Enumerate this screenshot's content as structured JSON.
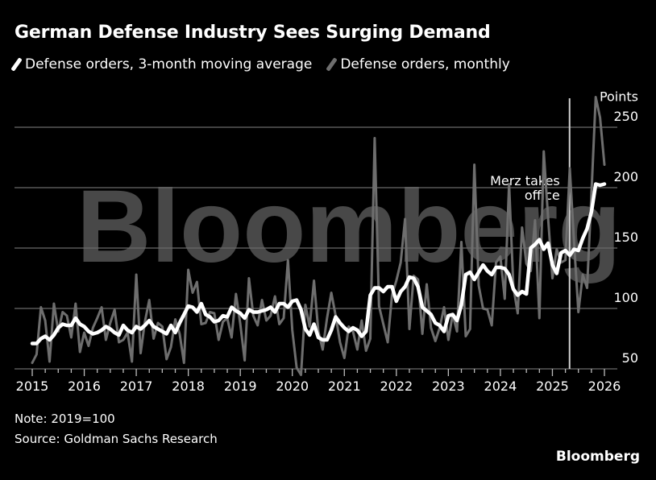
{
  "title": "German Defense Industry Sees Surging Demand",
  "legend": [
    {
      "label": "Defense orders, 3-month moving average",
      "color": "#ffffff"
    },
    {
      "label": "Defense orders, monthly",
      "color": "#6e6e6e"
    }
  ],
  "note": "Note: 2019=100",
  "source": "Source: Goldman Sachs Research",
  "brand": "Bloomberg",
  "watermark": "Bloomberg",
  "chart_data": {
    "type": "line",
    "title": "German Defense Industry Sees Surging Demand",
    "xlabel": "",
    "ylabel": "Points",
    "y_unit_label": "Points",
    "x_start": "2015-01",
    "x_frequency": "monthly",
    "xlim": [
      2015.0,
      2026.0
    ],
    "ylim": [
      50,
      275
    ],
    "y_ticks": [
      50,
      100,
      150,
      200,
      250
    ],
    "x_ticks": [
      "2015",
      "2016",
      "2017",
      "2018",
      "2019",
      "2020",
      "2021",
      "2022",
      "2023",
      "2024",
      "2025",
      "2026"
    ],
    "grid": "horizontal",
    "legend_position": "top-left",
    "annotation": {
      "text_line1": "Merz takes",
      "text_line2": "office",
      "x": 2025.33
    },
    "series": [
      {
        "name": "Defense orders, 3-month moving average",
        "color": "#ffffff",
        "values": [
          71,
          71,
          75,
          77,
          74,
          78,
          84,
          87,
          86,
          86,
          92,
          87,
          85,
          81,
          79,
          80,
          82,
          85,
          83,
          80,
          78,
          86,
          82,
          80,
          85,
          83,
          86,
          90,
          85,
          83,
          81,
          79,
          86,
          80,
          88,
          95,
          102,
          101,
          97,
          104,
          95,
          93,
          89,
          90,
          94,
          93,
          101,
          98,
          96,
          92,
          99,
          97,
          97,
          98,
          99,
          101,
          97,
          104,
          104,
          101,
          106,
          107,
          99,
          83,
          78,
          87,
          76,
          74,
          74,
          82,
          93,
          88,
          84,
          81,
          84,
          82,
          77,
          81,
          111,
          117,
          117,
          114,
          118,
          118,
          106,
          114,
          118,
          126,
          125,
          118,
          101,
          98,
          95,
          88,
          86,
          81,
          94,
          95,
          90,
          103,
          128,
          130,
          124,
          130,
          136,
          131,
          128,
          134,
          134,
          133,
          128,
          116,
          111,
          114,
          112,
          150,
          153,
          157,
          149,
          154,
          136,
          129,
          146,
          148,
          144,
          149,
          148,
          158,
          166,
          180,
          203,
          202,
          203
        ]
      },
      {
        "name": "Defense orders, monthly",
        "color": "#6e6e6e",
        "values": [
          55,
          62,
          101,
          90,
          56,
          104,
          81,
          97,
          94,
          76,
          104,
          64,
          80,
          69,
          84,
          92,
          101,
          74,
          88,
          99,
          72,
          74,
          80,
          56,
          128,
          63,
          89,
          107,
          75,
          88,
          85,
          58,
          68,
          91,
          79,
          55,
          132,
          113,
          122,
          87,
          88,
          97,
          96,
          74,
          89,
          92,
          76,
          112,
          87,
          57,
          125,
          94,
          86,
          107,
          90,
          94,
          110,
          87,
          92,
          140,
          82,
          51,
          45,
          103,
          85,
          123,
          81,
          66,
          92,
          113,
          94,
          72,
          59,
          85,
          81,
          66,
          90,
          65,
          75,
          241,
          102,
          87,
          72,
          111,
          123,
          138,
          174,
          83,
          127,
          124,
          79,
          120,
          84,
          73,
          84,
          101,
          74,
          95,
          81,
          155,
          77,
          83,
          219,
          119,
          100,
          99,
          86,
          138,
          143,
          108,
          203,
          118,
          96,
          167,
          137,
          131,
          173,
          92,
          230,
          175,
          125,
          149,
          138,
          140,
          216,
          155,
          97,
          128,
          117,
          195,
          275,
          258,
          219
        ]
      }
    ]
  }
}
